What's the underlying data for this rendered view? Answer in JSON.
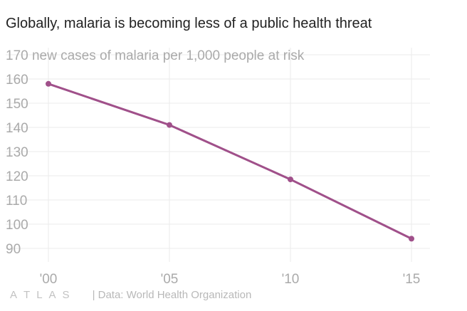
{
  "title": "Globally, malaria is becoming less of a public health threat",
  "source": "| Data: World Health Organization",
  "logo_text": [
    "A",
    "T",
    "L",
    "A",
    "S"
  ],
  "colors": {
    "line": "#a0508a",
    "grid": "#ebebeb",
    "tick_text": "#aaaaaa",
    "title": "#222222"
  },
  "chart_data": {
    "type": "line",
    "ylabel": "new cases of malaria per 1,000 people at risk",
    "categories": [
      "'00",
      "'05",
      "'10",
      "'15"
    ],
    "x": [
      2000,
      2005,
      2010,
      2015
    ],
    "series": [
      {
        "values": [
          158,
          141,
          118.5,
          94
        ]
      }
    ],
    "ylim": [
      90,
      170
    ],
    "yticks": [
      90,
      100,
      110,
      120,
      130,
      140,
      150,
      160,
      170
    ],
    "grid": true,
    "legend": false
  }
}
